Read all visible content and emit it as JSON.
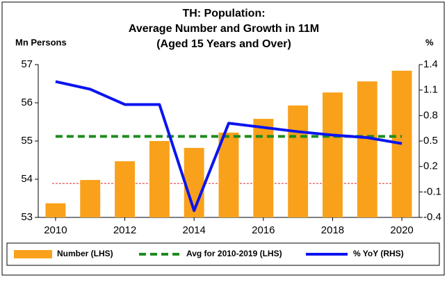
{
  "chart_data": {
    "type": "bar",
    "title": [
      "TH: Population:",
      "Average Number and Growth in 11M",
      "(Aged 15 Years and Over)"
    ],
    "y_label": "Mn Persons",
    "y2_label": "%",
    "x": [
      2010,
      2011,
      2012,
      2013,
      2014,
      2015,
      2016,
      2017,
      2018,
      2019,
      2020
    ],
    "xlim": [
      2009.5,
      2020.5
    ],
    "xticks": [
      2010,
      2012,
      2014,
      2016,
      2018,
      2020
    ],
    "ylim": [
      53,
      57
    ],
    "yticks": [
      53,
      54,
      55,
      56,
      57
    ],
    "y2lim": [
      -0.4,
      1.4
    ],
    "y2ticks": [
      -0.4,
      -0.1,
      0.2,
      0.5,
      0.8,
      1.1,
      1.4
    ],
    "series": [
      {
        "name": "Number (LHS)",
        "type": "bar",
        "color": "#f9a11b",
        "values": [
          53.37,
          53.98,
          54.47,
          55.0,
          54.82,
          55.22,
          55.58,
          55.93,
          56.27,
          56.56,
          56.84
        ]
      },
      {
        "name": "Avg for 2010-2019 (LHS)",
        "type": "dashed-line",
        "color": "#1e8c1e",
        "values": [
          55.12,
          55.12,
          55.12,
          55.12,
          55.12,
          55.12,
          55.12,
          55.12,
          55.12,
          55.12,
          55.12
        ]
      },
      {
        "name": "% YoY (RHS)",
        "type": "line",
        "axis": "y2",
        "color": "#0a14f0",
        "values": [
          1.2,
          1.11,
          0.93,
          0.93,
          -0.32,
          0.71,
          0.66,
          0.61,
          0.57,
          0.54,
          0.47
        ]
      }
    ],
    "reference_line": {
      "axis": "y2",
      "value": 0,
      "color": "#e02020"
    },
    "legend": "bottom"
  }
}
